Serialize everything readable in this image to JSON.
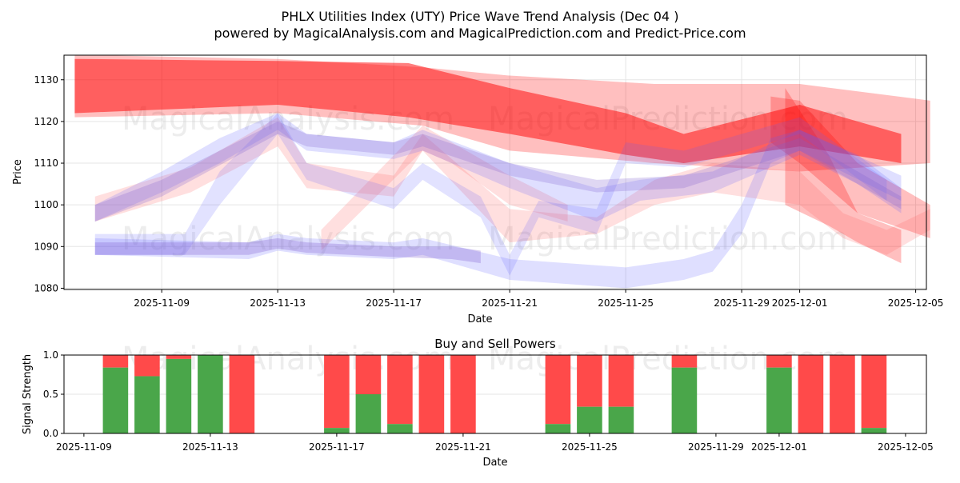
{
  "title": "PHLX Utilities Index (UTY) Price Wave Trend Analysis (Dec 04 )",
  "subtitle": "powered by MagicalAnalysis.com and MagicalPrediction.com and Predict-Price.com",
  "watermarks": [
    "MagicalAnalysis.com",
    "MagicalPrediction.com"
  ],
  "chart_data": [
    {
      "type": "area",
      "title": "",
      "xlabel": "Date",
      "ylabel": "Price",
      "ylim": [
        1079.7,
        1135.9
      ],
      "x_origin": "2025-11-09",
      "xlim_days": [
        -3.37,
        26.37
      ],
      "xticks": [
        {
          "day": 0,
          "label": "2025-11-09"
        },
        {
          "day": 4,
          "label": "2025-11-13"
        },
        {
          "day": 8,
          "label": "2025-11-17"
        },
        {
          "day": 12,
          "label": "2025-11-21"
        },
        {
          "day": 16,
          "label": "2025-11-25"
        },
        {
          "day": 20,
          "label": "2025-11-29"
        },
        {
          "day": 22,
          "label": "2025-12-01"
        },
        {
          "day": 26,
          "label": "2025-12-05"
        }
      ],
      "yticks": [
        1080,
        1090,
        1100,
        1110,
        1120,
        1130
      ],
      "bands": [
        {
          "color": "#ff0000",
          "alpha": 0.25,
          "points": [
            [
              -3,
              1121,
              1136
            ],
            [
              4,
              1122,
              1135
            ],
            [
              9,
              1119,
              1133
            ],
            [
              12,
              1113,
              1131
            ],
            [
              17,
              1110,
              1129
            ],
            [
              22,
              1108,
              1129
            ],
            [
              26.5,
              1110,
              1125
            ]
          ]
        },
        {
          "color": "#ff0000",
          "alpha": 0.5,
          "points": [
            [
              -3,
              1122,
              1135
            ],
            [
              4,
              1124,
              1134.5
            ],
            [
              8.5,
              1121,
              1134
            ],
            [
              12,
              1117,
              1128
            ],
            [
              16,
              1112,
              1122
            ],
            [
              18,
              1110,
              1117
            ],
            [
              22,
              1114,
              1124
            ],
            [
              25.5,
              1110,
              1117
            ]
          ]
        },
        {
          "color": "#ff0000",
          "alpha": 0.25,
          "points": [
            [
              21,
              1115,
              1126
            ],
            [
              22,
              1110,
              1125
            ],
            [
              24,
              1098,
              1110
            ],
            [
              26.5,
              1092,
              1100
            ]
          ]
        },
        {
          "color": "#ff0000",
          "alpha": 0.25,
          "points": [
            [
              21.5,
              1100,
              1128
            ],
            [
              23,
              1095,
              1112
            ],
            [
              24,
              1091,
              1098
            ],
            [
              25.5,
              1086,
              1094
            ]
          ]
        },
        {
          "color": "#ff8080",
          "alpha": 0.25,
          "points": [
            [
              5.5,
              1089,
              1094
            ],
            [
              9,
              1113,
              1119
            ],
            [
              10,
              1110,
              1115
            ],
            [
              12,
              1100,
              1107
            ],
            [
              14,
              1096,
              1100
            ]
          ]
        },
        {
          "color": "#ff6060",
          "alpha": 0.2,
          "points": [
            [
              -2.3,
              1096,
              1102
            ],
            [
              1,
              1103,
              1109
            ],
            [
              4,
              1114,
              1121
            ],
            [
              5,
              1104,
              1110
            ],
            [
              8,
              1102,
              1107
            ],
            [
              9,
              1113,
              1117
            ],
            [
              12,
              1091,
              1099
            ],
            [
              15,
              1093,
              1097
            ],
            [
              17,
              1100,
              1106
            ],
            [
              19,
              1103,
              1110
            ],
            [
              22,
              1100,
              1108
            ],
            [
              23.5,
              1092,
              1098
            ],
            [
              25,
              1088,
              1094
            ],
            [
              26.5,
              1094,
              1099
            ]
          ]
        },
        {
          "color": "#6060ff",
          "alpha": 0.2,
          "points": [
            [
              -2.3,
              1096,
              1100
            ],
            [
              0,
              1103,
              1108
            ],
            [
              2,
              1110,
              1116
            ],
            [
              4,
              1118,
              1122
            ],
            [
              5,
              1113,
              1117
            ],
            [
              8,
              1111,
              1115
            ],
            [
              9,
              1113,
              1118
            ],
            [
              12,
              1104,
              1110
            ],
            [
              15,
              1096,
              1104
            ],
            [
              16.5,
              1101,
              1106
            ],
            [
              19,
              1103,
              1108
            ],
            [
              22,
              1112,
              1118
            ],
            [
              24,
              1105,
              1112
            ],
            [
              25.5,
              1098,
              1104
            ]
          ]
        },
        {
          "color": "#6060ff",
          "alpha": 0.2,
          "points": [
            [
              -2.3,
              1088,
              1092
            ],
            [
              3,
              1087,
              1091
            ],
            [
              4,
              1089,
              1093
            ],
            [
              5,
              1088,
              1092
            ],
            [
              8,
              1087,
              1091
            ],
            [
              9,
              1088,
              1092
            ],
            [
              12,
              1082,
              1087
            ],
            [
              16,
              1080,
              1085
            ],
            [
              18,
              1082,
              1087
            ],
            [
              19,
              1084,
              1089
            ],
            [
              20,
              1093,
              1100
            ],
            [
              21,
              1110,
              1116
            ],
            [
              22,
              1113,
              1118
            ],
            [
              25.5,
              1101,
              1107
            ]
          ]
        },
        {
          "color": "#6060ff",
          "alpha": 0.18,
          "points": [
            [
              -2.3,
              1088,
              1093
            ],
            [
              0.8,
              1088,
              1093
            ],
            [
              2,
              1100,
              1108
            ],
            [
              4,
              1117,
              1122
            ],
            [
              5,
              1106,
              1110
            ],
            [
              8,
              1099,
              1104
            ],
            [
              9,
              1106,
              1110
            ],
            [
              11,
              1097,
              1102
            ],
            [
              12,
              1083,
              1088
            ],
            [
              13,
              1097,
              1101
            ],
            [
              15,
              1093,
              1099
            ],
            [
              16,
              1110,
              1115
            ],
            [
              18,
              1109,
              1113
            ],
            [
              22,
              1117,
              1121
            ],
            [
              25,
              1101,
              1106
            ]
          ]
        },
        {
          "color": "#8060d0",
          "alpha": 0.25,
          "points": [
            [
              -2.3,
              1096,
              1100
            ],
            [
              0,
              1102,
              1106
            ],
            [
              4,
              1117,
              1120
            ],
            [
              5,
              1114,
              1117
            ],
            [
              8,
              1112,
              1115
            ],
            [
              9,
              1114,
              1117
            ],
            [
              12,
              1107,
              1110
            ],
            [
              15,
              1103,
              1106
            ],
            [
              18,
              1104,
              1107
            ],
            [
              22,
              1113,
              1116
            ],
            [
              25.5,
              1099,
              1102
            ]
          ]
        },
        {
          "color": "#8060d0",
          "alpha": 0.3,
          "points": [
            [
              -2.3,
              1088,
              1091
            ],
            [
              3,
              1088,
              1091
            ],
            [
              4,
              1089.5,
              1092
            ],
            [
              5,
              1088.5,
              1091
            ],
            [
              8,
              1087.5,
              1090
            ],
            [
              10,
              1087,
              1090
            ],
            [
              11,
              1086,
              1089
            ]
          ]
        }
      ]
    },
    {
      "type": "bar",
      "title": "Buy and Sell Powers",
      "xlabel": "Date",
      "ylabel": "Signal Strength",
      "ylim": [
        0,
        1
      ],
      "x_origin": "2025-11-09",
      "xlim_days": [
        -0.63,
        26.66
      ],
      "xticks": [
        {
          "day": 0,
          "label": "2025-11-09"
        },
        {
          "day": 4,
          "label": "2025-11-13"
        },
        {
          "day": 8,
          "label": "2025-11-17"
        },
        {
          "day": 12,
          "label": "2025-11-21"
        },
        {
          "day": 16,
          "label": "2025-11-25"
        },
        {
          "day": 20,
          "label": "2025-11-29"
        },
        {
          "day": 22,
          "label": "2025-12-01"
        },
        {
          "day": 26,
          "label": "2025-12-05"
        }
      ],
      "yticks": [
        {
          "v": 0,
          "label": "0.0"
        },
        {
          "v": 0.5,
          "label": "0.5"
        },
        {
          "v": 1,
          "label": "1.0"
        }
      ],
      "days": [
        1,
        2,
        3,
        4,
        5,
        8,
        9,
        10,
        11,
        12,
        15,
        16,
        17,
        19,
        22,
        23,
        24,
        25
      ],
      "buy": [
        0.84,
        0.73,
        0.95,
        1.0,
        0,
        0.07,
        0.5,
        0.12,
        0,
        0,
        0.12,
        0.34,
        0.34,
        0.84,
        0.84,
        0,
        0,
        0.07
      ],
      "colors": {
        "buy": "#4aa64a",
        "sell": "#ff4a4a"
      }
    }
  ]
}
